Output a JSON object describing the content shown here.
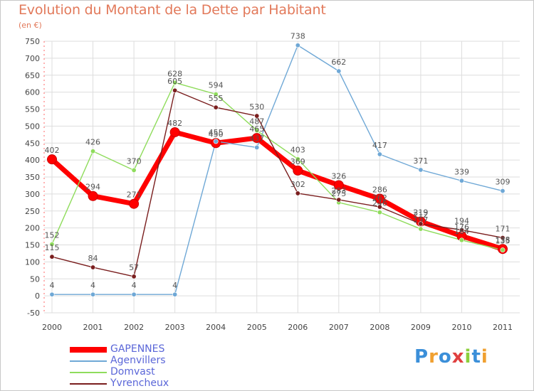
{
  "chart_data": {
    "type": "line",
    "title": "Evolution du Montant de la Dette par Habitant",
    "subtitle": "(en €)",
    "categories": [
      "2000",
      "2001",
      "2002",
      "2003",
      "2004",
      "2005",
      "2006",
      "2007",
      "2008",
      "2009",
      "2010",
      "2011"
    ],
    "ylim": [
      -50,
      750
    ],
    "yticks": [
      -50,
      0,
      50,
      100,
      150,
      200,
      250,
      300,
      350,
      400,
      450,
      500,
      550,
      600,
      650,
      700,
      750
    ],
    "grid": true,
    "legend_position": "bottom-left",
    "series": [
      {
        "name": "GAPENNES",
        "color": "#ff0000",
        "emphasis": true,
        "values": [
          402,
          294,
          271,
          482,
          450,
          465,
          369,
          326,
          286,
          219,
          176,
          138
        ],
        "labels": [
          "402",
          "294",
          "271",
          "482",
          "450",
          "465",
          "369",
          "326",
          "286",
          "219",
          "176",
          "138"
        ]
      },
      {
        "name": "Agenvillers",
        "color": "#6fa8d6",
        "emphasis": false,
        "values": [
          4,
          4,
          4,
          4,
          455,
          437,
          738,
          662,
          417,
          371,
          339,
          309
        ],
        "labels": [
          "4",
          "4",
          "4",
          "4",
          "455",
          "437",
          "738",
          "662",
          "417",
          "371",
          "339",
          "309"
        ]
      },
      {
        "name": "Domvast",
        "color": "#8fdc5c",
        "emphasis": false,
        "values": [
          152,
          426,
          370,
          628,
          594,
          487,
          403,
          275,
          246,
          197,
          164,
          135
        ],
        "labels": [
          "152",
          "426",
          "370",
          "628",
          "594",
          "487",
          "403",
          "275",
          "246",
          "197",
          "164",
          "135"
        ]
      },
      {
        "name": "Yvrencheux",
        "color": "#7a1e1e",
        "emphasis": false,
        "values": [
          115,
          84,
          57,
          605,
          555,
          530,
          302,
          283,
          262,
          212,
          194,
          171
        ],
        "labels": [
          "115",
          "84",
          "57",
          "605",
          "555",
          "530",
          "302",
          "283",
          "262",
          "212",
          "194",
          "171"
        ]
      }
    ]
  },
  "brand": {
    "text": "Proxiti",
    "letters": [
      "P",
      "r",
      "o",
      "x",
      "i",
      "t",
      "i"
    ],
    "colors": [
      "#3b8fd9",
      "#f0a030",
      "#3b8fd9",
      "#e04040",
      "#8ccf3c",
      "#3b8fd9",
      "#f0a030"
    ]
  }
}
